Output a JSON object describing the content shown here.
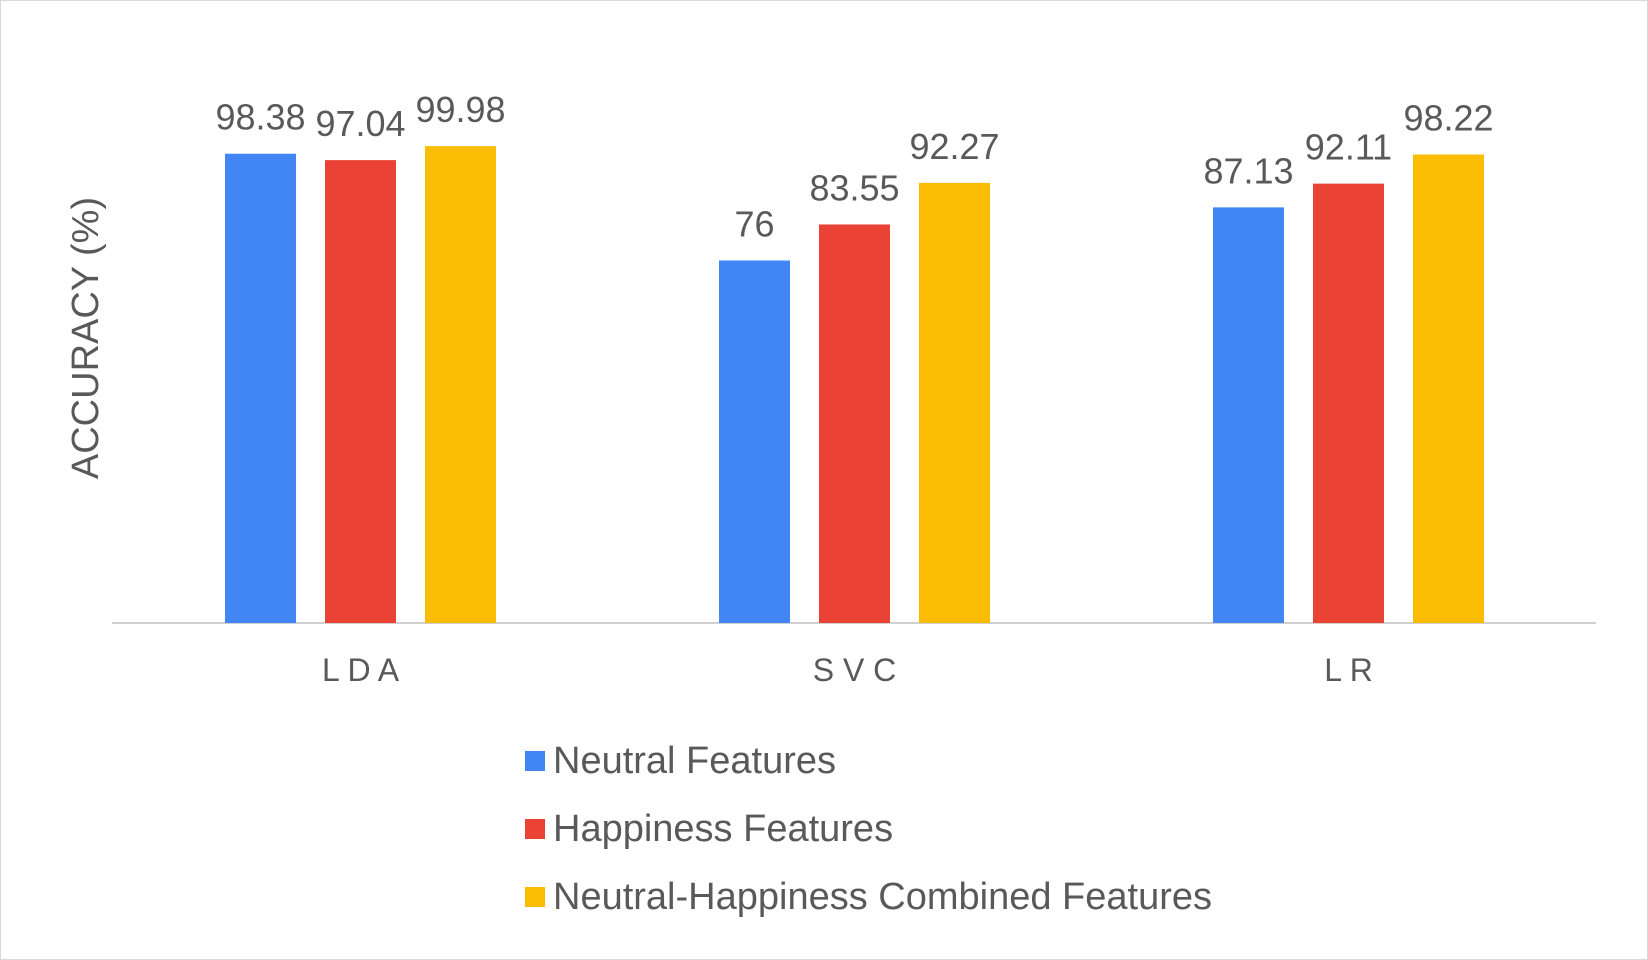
{
  "chart_data": {
    "type": "bar",
    "categories": [
      "L D A",
      "S V C",
      "L R"
    ],
    "series": [
      {
        "name": "Neutral Features",
        "values": [
          98.38,
          76,
          87.13
        ],
        "color": "#4285f4"
      },
      {
        "name": "Happiness Features",
        "values": [
          97.04,
          83.55,
          92.11
        ],
        "color": "#ea4335"
      },
      {
        "name": "Neutral-Happiness Combined Features",
        "values": [
          99.98,
          92.27,
          98.22
        ],
        "color": "#fbbc04"
      }
    ],
    "data_labels": [
      [
        "98.38",
        "76",
        "87.13"
      ],
      [
        "97.04",
        "83.55",
        "92.11"
      ],
      [
        "99.98",
        "92.27",
        "98.22"
      ]
    ],
    "title": "",
    "xlabel": "",
    "ylabel": "ACCURACY (%)",
    "ylim": [
      0,
      100
    ],
    "grid": false,
    "legend_position": "bottom"
  }
}
